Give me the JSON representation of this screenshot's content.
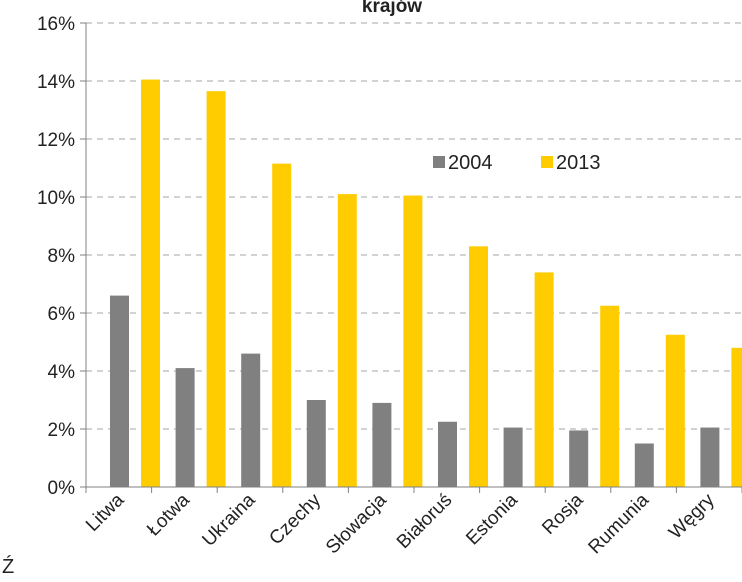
{
  "chart_data": {
    "type": "bar",
    "title": "krajów",
    "categories": [
      "Litwa",
      "Łotwa",
      "Ukraina",
      "Czechy",
      "Słowacja",
      "Białoruś",
      "Estonia",
      "Rosja",
      "Rumunia",
      "Węgry"
    ],
    "series": [
      {
        "name": "2004",
        "color": "#808080",
        "values": [
          6.6,
          4.1,
          4.6,
          3.0,
          2.9,
          2.25,
          2.05,
          1.95,
          1.5,
          2.05
        ]
      },
      {
        "name": "2013",
        "color": "#ffcc00",
        "values": [
          14.05,
          13.65,
          11.15,
          10.1,
          10.05,
          8.3,
          7.4,
          6.25,
          5.25,
          4.8
        ]
      }
    ],
    "ylim": [
      0,
      16
    ],
    "yticks": [
      "0%",
      "2%",
      "4%",
      "6%",
      "8%",
      "10%",
      "12%",
      "14%",
      "16%"
    ],
    "grid": true,
    "legend_position": "top-right"
  },
  "footnote": "Ź"
}
